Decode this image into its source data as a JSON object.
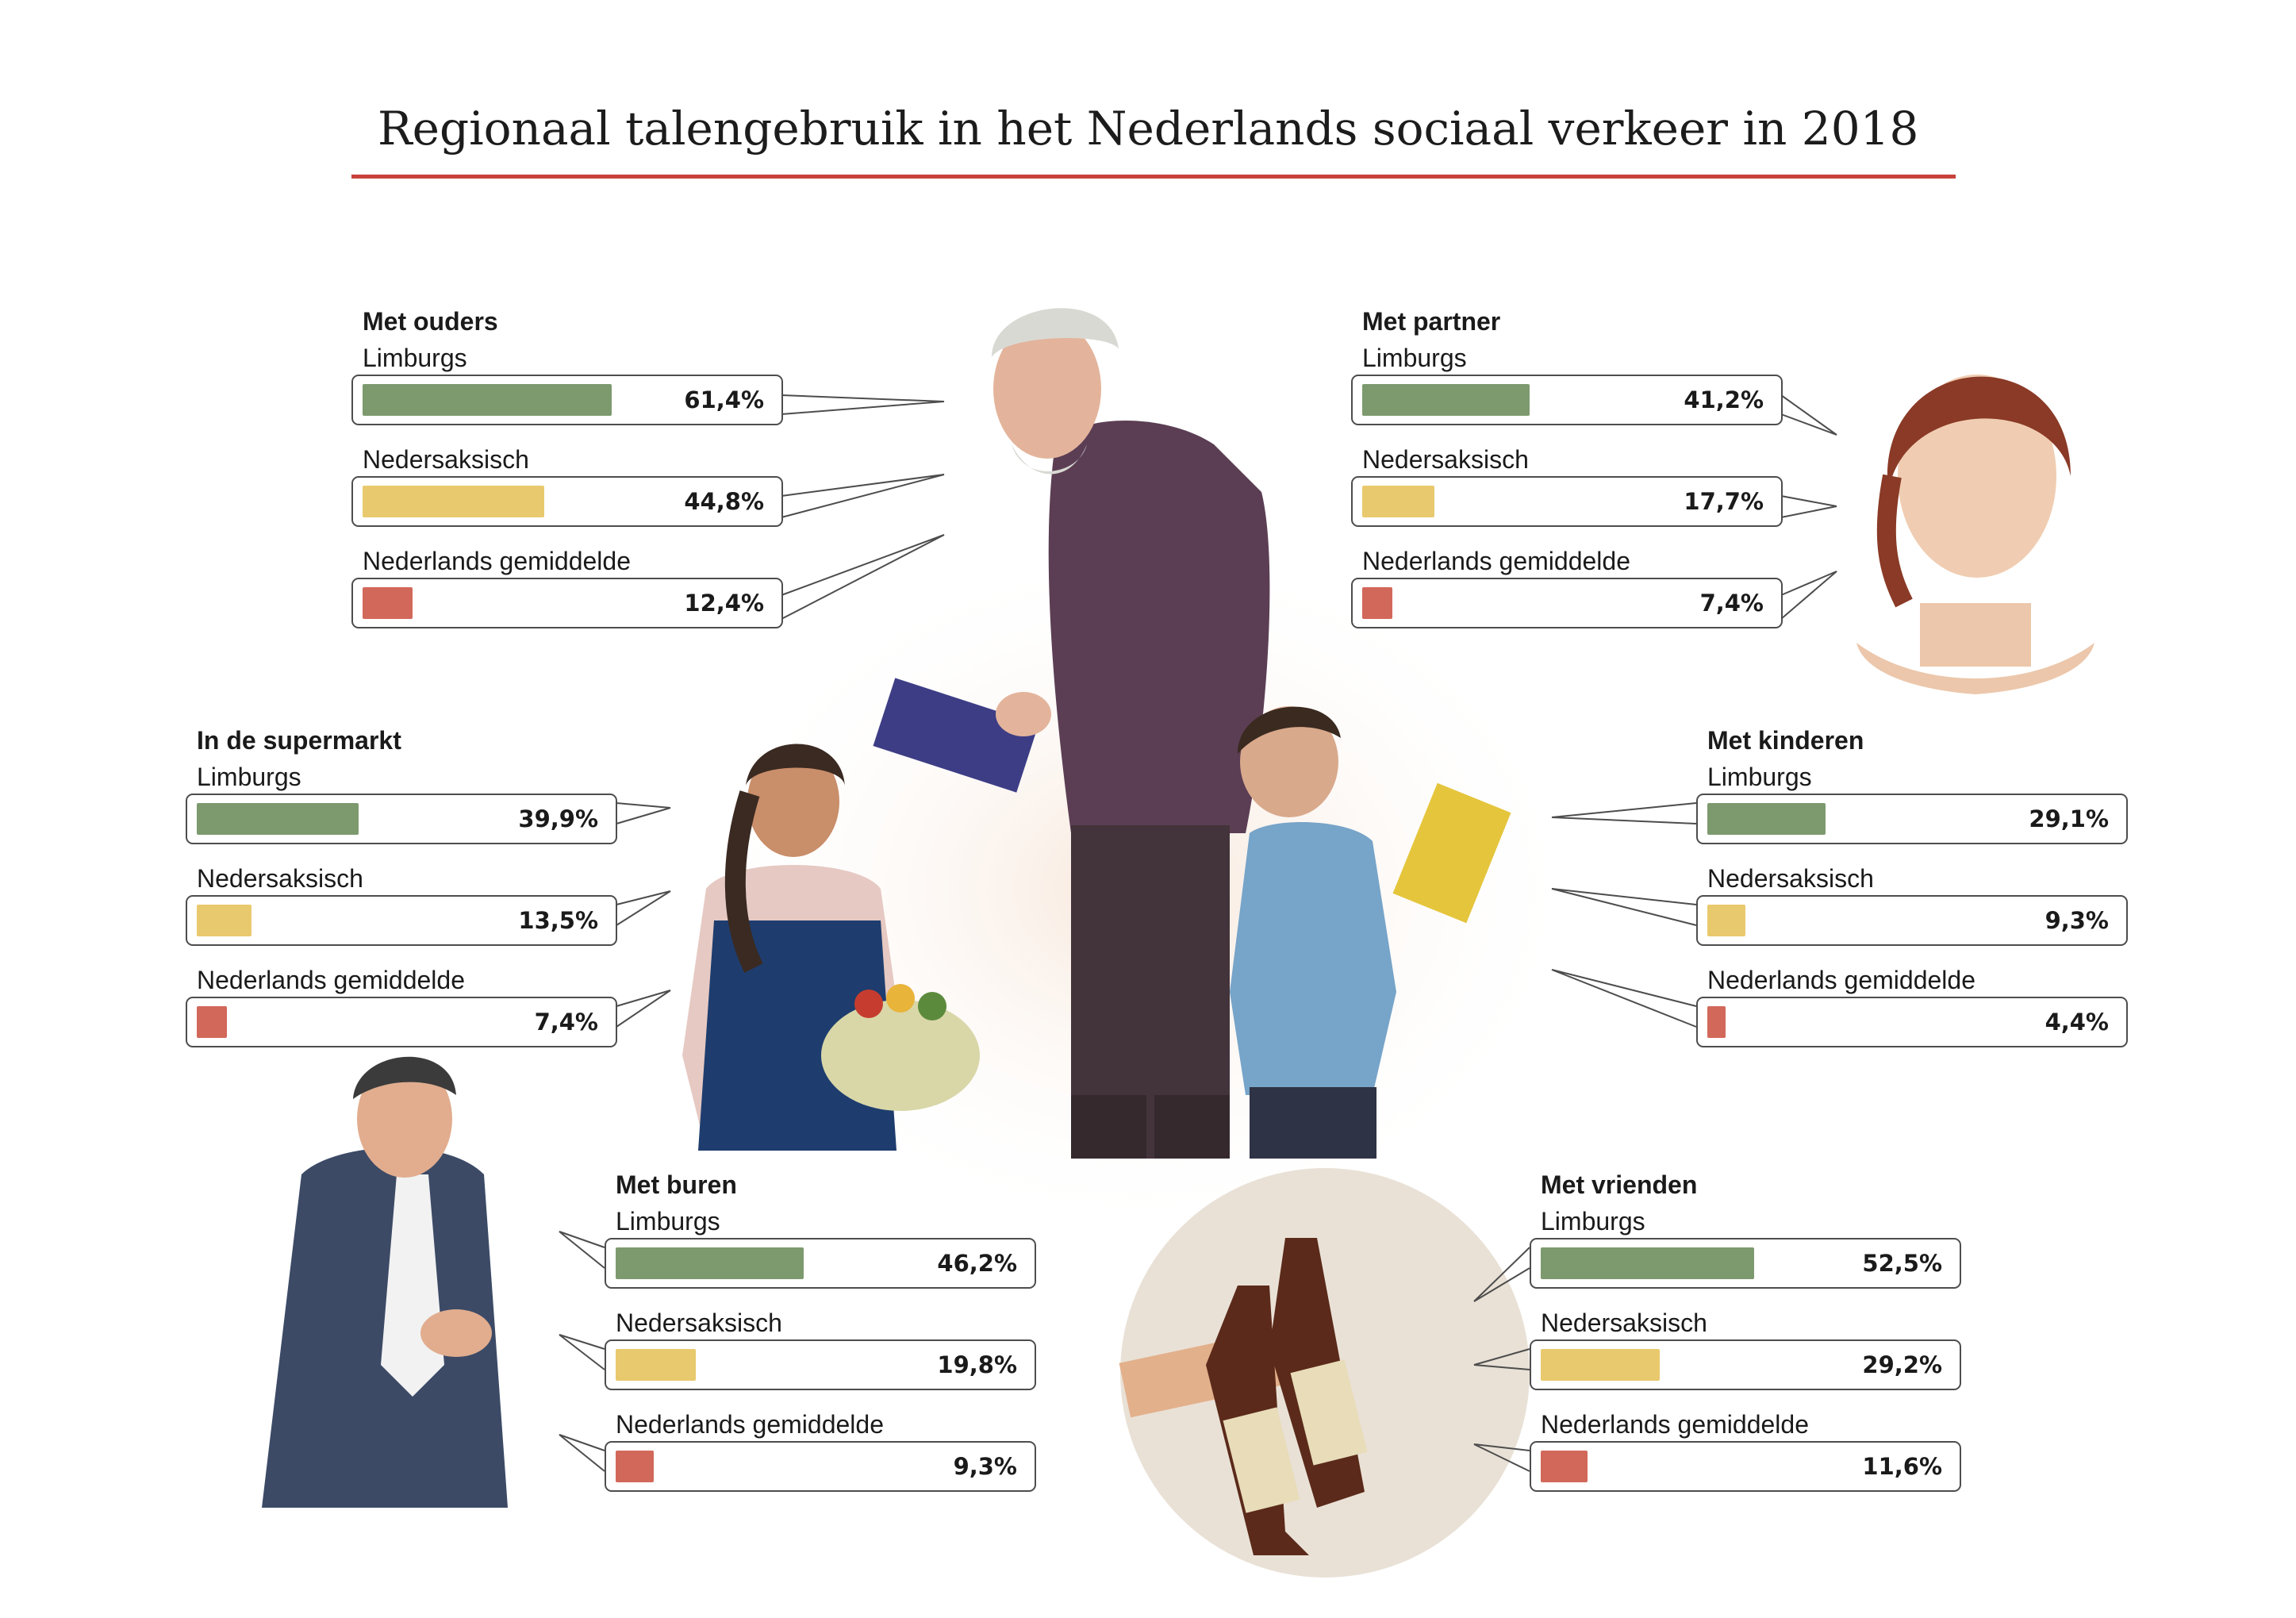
{
  "title": "Regionaal talengebruik in het Nederlands sociaal verkeer in 2018",
  "colors": {
    "limburgs": "#7d9a6e",
    "nedersaksisch": "#e9c96d",
    "nederlands": "#d2685a",
    "accent": "#c8413a"
  },
  "chart_data": [
    {
      "type": "bar",
      "title": "Met ouders",
      "categories": [
        "Limburgs",
        "Nedersaksisch",
        "Nederlands gemiddelde"
      ],
      "values": [
        61.4,
        44.8,
        12.4
      ],
      "labels": [
        "61,4%",
        "44,8%",
        "12,4%"
      ]
    },
    {
      "type": "bar",
      "title": "Met partner",
      "categories": [
        "Limburgs",
        "Nedersaksisch",
        "Nederlands gemiddelde"
      ],
      "values": [
        41.2,
        17.7,
        7.4
      ],
      "labels": [
        "41,2%",
        "17,7%",
        "7,4%"
      ]
    },
    {
      "type": "bar",
      "title": "In de supermarkt",
      "categories": [
        "Limburgs",
        "Nedersaksisch",
        "Nederlands gemiddelde"
      ],
      "values": [
        39.9,
        13.5,
        7.4
      ],
      "labels": [
        "39,9%",
        "13,5%",
        "7,4%"
      ]
    },
    {
      "type": "bar",
      "title": "Met kinderen",
      "categories": [
        "Limburgs",
        "Nedersaksisch",
        "Nederlands gemiddelde"
      ],
      "values": [
        29.1,
        9.3,
        4.4
      ],
      "labels": [
        "29,1%",
        "9,3%",
        "4,4%"
      ]
    },
    {
      "type": "bar",
      "title": "Met buren",
      "categories": [
        "Limburgs",
        "Nedersaksisch",
        "Nederlands gemiddelde"
      ],
      "values": [
        46.2,
        19.8,
        9.3
      ],
      "labels": [
        "46,2%",
        "19,8%",
        "9,3%"
      ]
    },
    {
      "type": "bar",
      "title": "Met vrienden",
      "categories": [
        "Limburgs",
        "Nedersaksisch",
        "Nederlands gemiddelde"
      ],
      "values": [
        52.5,
        29.2,
        11.6
      ],
      "labels": [
        "52,5%",
        "29,2%",
        "11,6%"
      ]
    }
  ]
}
